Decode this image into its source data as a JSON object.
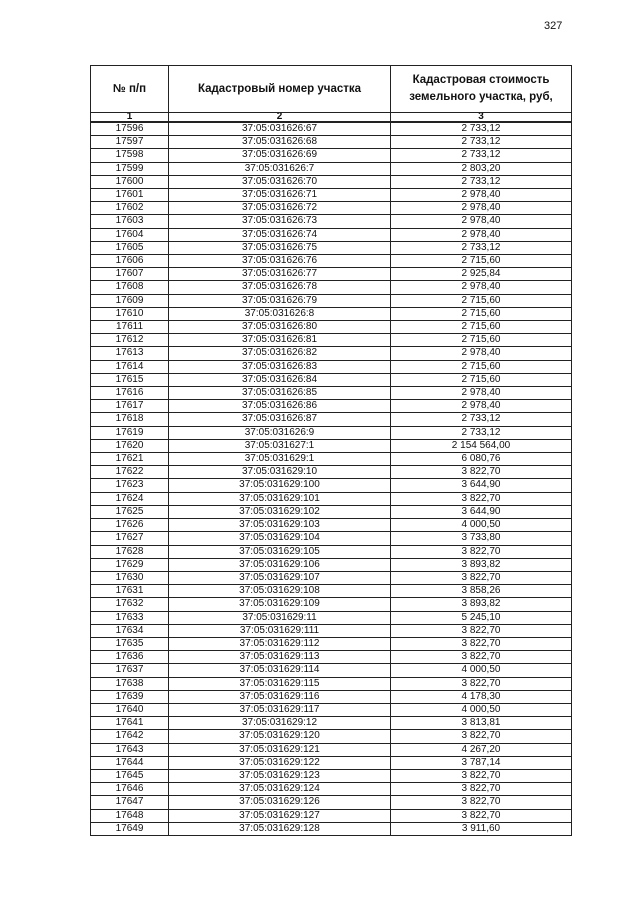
{
  "page_number": "327",
  "table": {
    "headers": [
      "№ п/п",
      "Кадастровый номер участка",
      "Кадастровая стоимость земельного участка, руб,"
    ],
    "column_numbers": [
      "1",
      "2",
      "3"
    ],
    "rows": [
      [
        "17596",
        "37:05:031626:67",
        "2 733,12"
      ],
      [
        "17597",
        "37:05:031626:68",
        "2 733,12"
      ],
      [
        "17598",
        "37:05:031626:69",
        "2 733,12"
      ],
      [
        "17599",
        "37:05:031626:7",
        "2 803,20"
      ],
      [
        "17600",
        "37:05:031626:70",
        "2 733,12"
      ],
      [
        "17601",
        "37:05:031626:71",
        "2 978,40"
      ],
      [
        "17602",
        "37:05:031626:72",
        "2 978,40"
      ],
      [
        "17603",
        "37:05:031626:73",
        "2 978,40"
      ],
      [
        "17604",
        "37:05:031626:74",
        "2 978,40"
      ],
      [
        "17605",
        "37:05:031626:75",
        "2 733,12"
      ],
      [
        "17606",
        "37:05:031626:76",
        "2 715,60"
      ],
      [
        "17607",
        "37:05:031626:77",
        "2 925,84"
      ],
      [
        "17608",
        "37:05:031626:78",
        "2 978,40"
      ],
      [
        "17609",
        "37:05:031626:79",
        "2 715,60"
      ],
      [
        "17610",
        "37:05:031626:8",
        "2 715,60"
      ],
      [
        "17611",
        "37:05:031626:80",
        "2 715,60"
      ],
      [
        "17612",
        "37:05:031626:81",
        "2 715,60"
      ],
      [
        "17613",
        "37:05:031626:82",
        "2 978,40"
      ],
      [
        "17614",
        "37:05:031626:83",
        "2 715,60"
      ],
      [
        "17615",
        "37:05:031626:84",
        "2 715,60"
      ],
      [
        "17616",
        "37:05:031626:85",
        "2 978,40"
      ],
      [
        "17617",
        "37:05:031626:86",
        "2 978,40"
      ],
      [
        "17618",
        "37:05:031626:87",
        "2 733,12"
      ],
      [
        "17619",
        "37:05:031626:9",
        "2 733,12"
      ],
      [
        "17620",
        "37:05:031627:1",
        "2 154 564,00"
      ],
      [
        "17621",
        "37:05:031629:1",
        "6 080,76"
      ],
      [
        "17622",
        "37:05:031629:10",
        "3 822,70"
      ],
      [
        "17623",
        "37:05:031629:100",
        "3 644,90"
      ],
      [
        "17624",
        "37:05:031629:101",
        "3 822,70"
      ],
      [
        "17625",
        "37:05:031629:102",
        "3 644,90"
      ],
      [
        "17626",
        "37:05:031629:103",
        "4 000,50"
      ],
      [
        "17627",
        "37:05:031629:104",
        "3 733,80"
      ],
      [
        "17628",
        "37:05:031629:105",
        "3 822,70"
      ],
      [
        "17629",
        "37:05:031629:106",
        "3 893,82"
      ],
      [
        "17630",
        "37:05:031629:107",
        "3 822,70"
      ],
      [
        "17631",
        "37:05:031629:108",
        "3 858,26"
      ],
      [
        "17632",
        "37:05:031629:109",
        "3 893,82"
      ],
      [
        "17633",
        "37:05:031629:11",
        "5 245,10"
      ],
      [
        "17634",
        "37:05:031629:111",
        "3 822,70"
      ],
      [
        "17635",
        "37:05:031629:112",
        "3 822,70"
      ],
      [
        "17636",
        "37:05:031629:113",
        "3 822,70"
      ],
      [
        "17637",
        "37:05:031629:114",
        "4 000,50"
      ],
      [
        "17638",
        "37:05:031629:115",
        "3 822,70"
      ],
      [
        "17639",
        "37:05:031629:116",
        "4 178,30"
      ],
      [
        "17640",
        "37:05:031629:117",
        "4 000,50"
      ],
      [
        "17641",
        "37:05:031629:12",
        "3 813,81"
      ],
      [
        "17642",
        "37:05:031629:120",
        "3 822,70"
      ],
      [
        "17643",
        "37:05:031629:121",
        "4 267,20"
      ],
      [
        "17644",
        "37:05:031629:122",
        "3 787,14"
      ],
      [
        "17645",
        "37:05:031629:123",
        "3 822,70"
      ],
      [
        "17646",
        "37:05:031629:124",
        "3 822,70"
      ],
      [
        "17647",
        "37:05:031629:126",
        "3 822,70"
      ],
      [
        "17648",
        "37:05:031629:127",
        "3 822,70"
      ],
      [
        "17649",
        "37:05:031629:128",
        "3 911,60"
      ]
    ]
  }
}
